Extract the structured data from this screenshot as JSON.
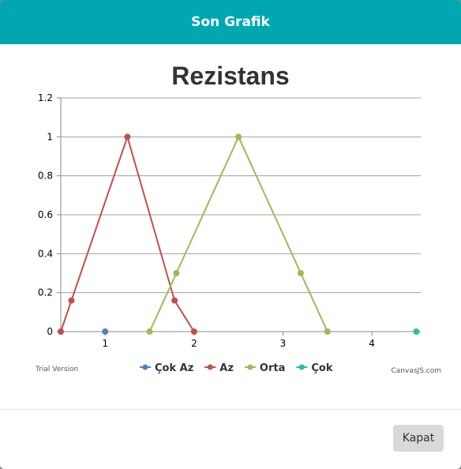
{
  "modal": {
    "title": "Son Grafik",
    "close_label": "Kapat"
  },
  "chart_credits": {
    "trial": "Trial Version",
    "brand": "CanvasJS.com"
  },
  "colors": {
    "header": "#00a7b1",
    "Çok Az": "#4f81bc",
    "Az": "#c0504e",
    "Orta": "#9bbb58",
    "Çok": "#23bfaa"
  },
  "chart_data": {
    "type": "line",
    "title": "Rezistans",
    "xlabel": "",
    "ylabel": "",
    "xlim": [
      0.5,
      4.55
    ],
    "ylim": [
      0,
      1.2
    ],
    "x_ticks": [
      1,
      2,
      3,
      4
    ],
    "y_ticks": [
      0,
      0.2,
      0.4,
      0.6,
      0.8,
      1,
      1.2
    ],
    "y_tick_labels": [
      "0",
      "0.2",
      "0.4",
      "0.6",
      "0.8",
      "1",
      "1.2"
    ],
    "grid": "horizontal",
    "legend": "bottom",
    "series": [
      {
        "name": "Çok Az",
        "points": [
          [
            1.0,
            0
          ]
        ]
      },
      {
        "name": "Az",
        "points": [
          [
            0.5,
            0
          ],
          [
            0.62,
            0.16
          ],
          [
            1.25,
            1
          ],
          [
            1.78,
            0.16
          ],
          [
            2.0,
            0
          ]
        ]
      },
      {
        "name": "Orta",
        "points": [
          [
            1.5,
            0
          ],
          [
            1.8,
            0.3
          ],
          [
            2.5,
            1
          ],
          [
            3.2,
            0.3
          ],
          [
            3.5,
            0
          ]
        ]
      },
      {
        "name": "Çok",
        "points": [
          [
            4.5,
            0
          ]
        ]
      }
    ]
  }
}
